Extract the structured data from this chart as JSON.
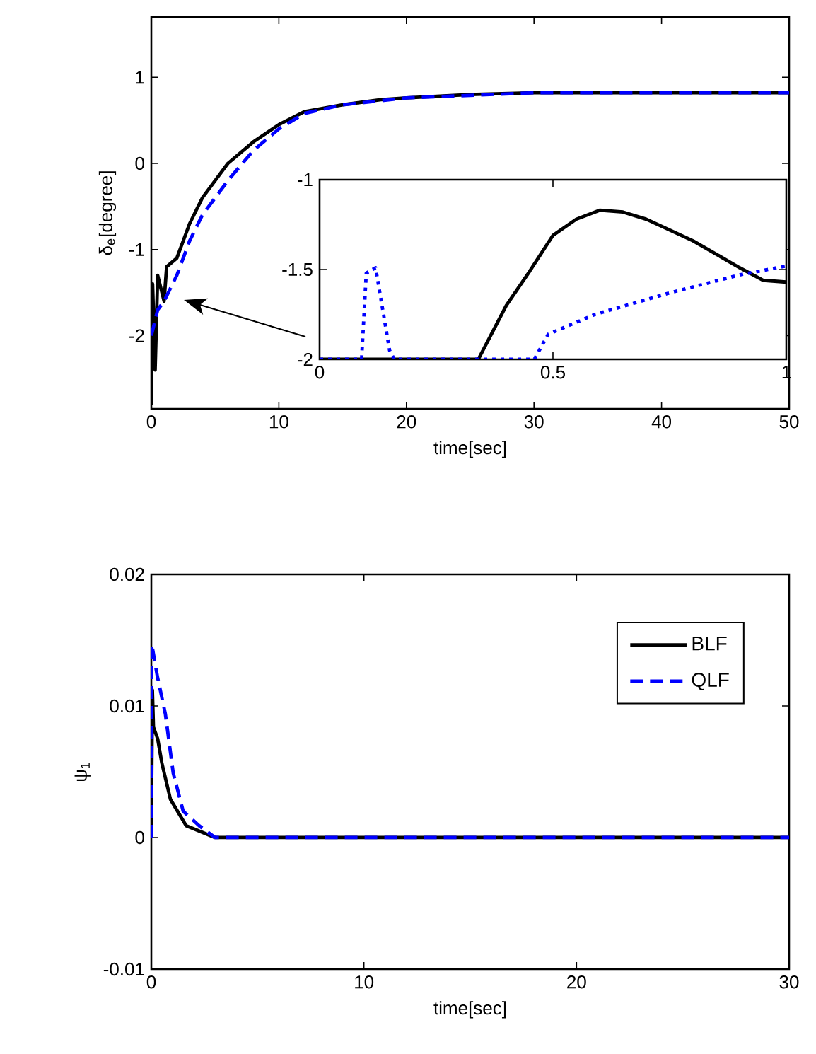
{
  "chart_data": [
    {
      "type": "line",
      "xlabel": "time[sec]",
      "ylabel": "δ$_{e}$[degree]",
      "xlim": [
        0,
        50
      ],
      "ylim": [
        -2.85,
        1.7
      ],
      "xticks": [
        0,
        10,
        20,
        30,
        40,
        50
      ],
      "yticks": [
        -2,
        -1,
        0,
        1
      ],
      "series": [
        {
          "color": "#000000",
          "line_style": "solid",
          "x": [
            0,
            0.1,
            0.3,
            0.5,
            1,
            1.2,
            2,
            3,
            4,
            5,
            6,
            8,
            10,
            12,
            15,
            18,
            20,
            25,
            30,
            40,
            50
          ],
          "values": [
            -2.8,
            -1.4,
            -2.4,
            -1.3,
            -1.6,
            -1.2,
            -1.1,
            -0.7,
            -0.4,
            -0.2,
            0,
            0.25,
            0.45,
            0.6,
            0.68,
            0.74,
            0.76,
            0.8,
            0.82,
            0.82,
            0.82
          ]
        },
        {
          "color": "#0000ff",
          "line_style": "dashed",
          "x": [
            0,
            0.5,
            1,
            2,
            3,
            4,
            6,
            8,
            10,
            12,
            15,
            20,
            30,
            40,
            50
          ],
          "values": [
            -2,
            -1.7,
            -1.6,
            -1.3,
            -0.9,
            -0.6,
            -0.2,
            0.15,
            0.4,
            0.58,
            0.68,
            0.76,
            0.82,
            0.82,
            0.82
          ]
        }
      ]
    },
    {
      "type": "line",
      "xlim": [
        0,
        1
      ],
      "ylim": [
        -2,
        -1
      ],
      "xticks": [
        0,
        0.5,
        1
      ],
      "yticks": [
        -2,
        -1.5,
        -1
      ],
      "series": [
        {
          "color": "#000000",
          "line_style": "solid",
          "x": [
            0,
            0.34,
            0.4,
            0.45,
            0.5,
            0.55,
            0.6,
            0.65,
            0.7,
            0.8,
            0.9,
            0.95,
            1
          ],
          "values": [
            -2,
            -2,
            -1.7,
            -1.51,
            -1.31,
            -1.22,
            -1.17,
            -1.18,
            -1.22,
            -1.34,
            -1.49,
            -1.56,
            -1.57
          ]
        },
        {
          "color": "#0000ff",
          "line_style": "dotted",
          "x": [
            0,
            0.09,
            0.1,
            0.12,
            0.15,
            0.16,
            0.46,
            0.49,
            0.59,
            0.75,
            0.9,
            1
          ],
          "values": [
            -2,
            -2,
            -1.52,
            -1.49,
            -1.95,
            -2,
            -2,
            -1.86,
            -1.75,
            -1.63,
            -1.53,
            -1.48
          ]
        }
      ]
    },
    {
      "type": "line",
      "xlabel": "time[sec]",
      "ylabel": "ψ$_{1}$",
      "xlim": [
        0,
        30
      ],
      "ylim": [
        -0.01,
        0.02
      ],
      "xticks": [
        0,
        10,
        20,
        30
      ],
      "yticks": [
        -0.01,
        0,
        0.01,
        0.02
      ],
      "legend": "top right",
      "series": [
        {
          "name": "BLF",
          "color": "#000000",
          "line_style": "solid",
          "x": [
            0,
            0.05,
            0.1,
            0.3,
            0.49,
            0.9,
            1.64,
            3,
            10,
            20,
            30
          ],
          "values": [
            0,
            0.0112,
            0.0084,
            0.0075,
            0.0057,
            0.0029,
            0.0009,
            0,
            0,
            0,
            0
          ]
        },
        {
          "name": "QLF",
          "color": "#0000ff",
          "line_style": "dashed",
          "x": [
            0,
            0.02,
            0.29,
            0.66,
            1.03,
            1.5,
            2.25,
            3,
            10,
            20,
            30
          ],
          "values": [
            0,
            0.0147,
            0.0122,
            0.0094,
            0.0049,
            0.002,
            0.0009,
            0,
            0,
            0,
            0
          ]
        }
      ]
    }
  ]
}
